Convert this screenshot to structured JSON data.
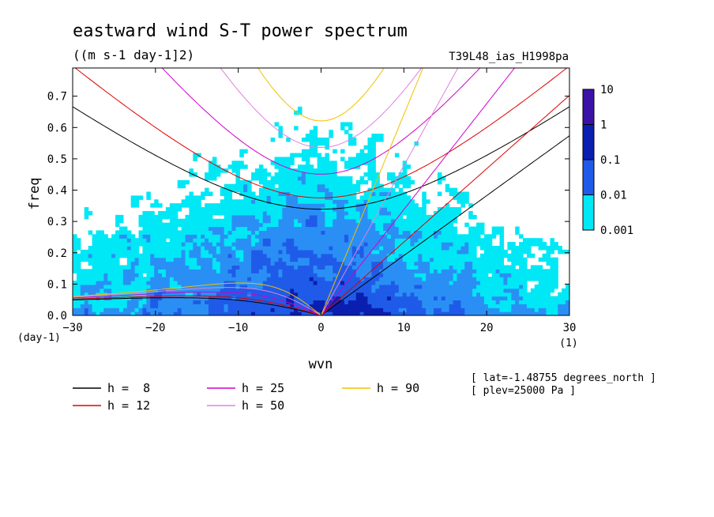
{
  "chart_data": {
    "type": "heatmap",
    "title": "eastward wind S-T power spectrum",
    "units": "((m s-1 day-1]2)",
    "run_label": "T39L48_ias_H1998pa",
    "xlabel": "wvn",
    "ylabel": "freq",
    "x_unit": "(1)",
    "y_unit": "(day-1)",
    "xlim": [
      -30,
      30
    ],
    "ylim": [
      0,
      0.79
    ],
    "x_ticks": [
      -30,
      -20,
      -10,
      0,
      10,
      20,
      30
    ],
    "y_ticks": [
      0.0,
      0.1,
      0.2,
      0.3,
      0.4,
      0.5,
      0.6,
      0.7
    ],
    "colorbar": {
      "levels": [
        "10",
        "1",
        "0.1",
        "0.01",
        "0.001"
      ],
      "colors": [
        "#3b12a8",
        "#0a1fb0",
        "#1f5be8",
        "#2a8ff5",
        "#00e8f5"
      ]
    },
    "dispersion_curves": [
      {
        "label": "h =  8",
        "h": 8,
        "color": "#000000"
      },
      {
        "label": "h = 12",
        "h": 12,
        "color": "#e00000"
      },
      {
        "label": "h = 25",
        "h": 25,
        "color": "#d000c8"
      },
      {
        "label": "h = 50",
        "h": 50,
        "color": "#e080e0"
      },
      {
        "label": "h = 90",
        "h": 90,
        "color": "#f0c000"
      }
    ],
    "annotations": [
      "[ lat=-1.48755 degrees_north ]",
      "[ plev=25000 Pa ]"
    ]
  }
}
